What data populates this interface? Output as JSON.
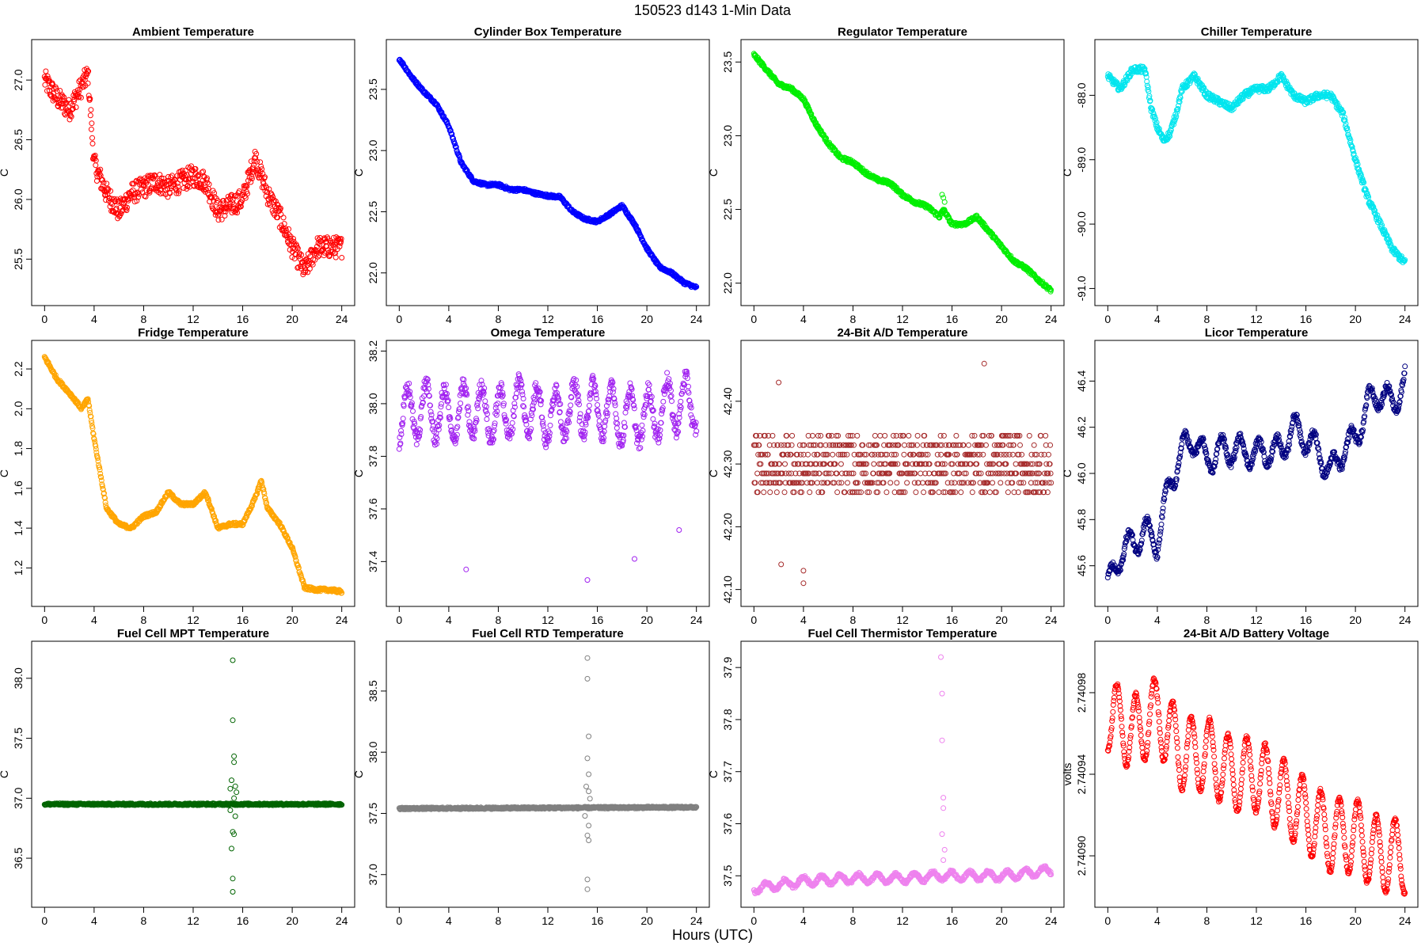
{
  "page_title": "150523    d143    1-Min Data",
  "x_axis_label": "Hours (UTC)",
  "chart_data": [
    {
      "type": "scatter",
      "title": "Ambient Temperature",
      "ylabel": "C",
      "color": "#ff0000",
      "xlim": [
        0,
        24
      ],
      "ylim": [
        25.2,
        27.25
      ],
      "xticks": [
        0,
        4,
        8,
        12,
        16,
        20,
        24
      ],
      "yticks": [
        25.5,
        26.0,
        26.5,
        27.0
      ],
      "ytick_labels": [
        "25.5",
        "26.0",
        "26.5",
        "27.0"
      ],
      "spread": 0.09,
      "series": [
        [
          0,
          27.0
        ],
        [
          1,
          26.85
        ],
        [
          2,
          26.75
        ],
        [
          3,
          26.95
        ],
        [
          3.5,
          27.05
        ],
        [
          4,
          26.3
        ],
        [
          5,
          26.05
        ],
        [
          6,
          25.9
        ],
        [
          7,
          26.05
        ],
        [
          8,
          26.1
        ],
        [
          9,
          26.15
        ],
        [
          10,
          26.1
        ],
        [
          11,
          26.15
        ],
        [
          12,
          26.2
        ],
        [
          13,
          26.15
        ],
        [
          14,
          25.9
        ],
        [
          15,
          25.95
        ],
        [
          16,
          26.0
        ],
        [
          17,
          26.35
        ],
        [
          18,
          26.05
        ],
        [
          19,
          25.85
        ],
        [
          20,
          25.6
        ],
        [
          21,
          25.4
        ],
        [
          22,
          25.6
        ],
        [
          23,
          25.6
        ],
        [
          24,
          25.6
        ]
      ],
      "outliers": []
    },
    {
      "type": "scatter",
      "title": "Cylinder Box Temperature",
      "ylabel": "C",
      "color": "#0000ff",
      "xlim": [
        0,
        24
      ],
      "ylim": [
        21.82,
        23.82
      ],
      "xticks": [
        0,
        4,
        8,
        12,
        16,
        20,
        24
      ],
      "yticks": [
        22.0,
        22.5,
        23.0,
        23.5
      ],
      "ytick_labels": [
        "22.0",
        "22.5",
        "23.0",
        "23.5"
      ],
      "spread": 0.012,
      "series": [
        [
          0,
          23.75
        ],
        [
          1,
          23.6
        ],
        [
          2,
          23.48
        ],
        [
          3,
          23.38
        ],
        [
          4,
          23.2
        ],
        [
          5,
          22.9
        ],
        [
          6,
          22.75
        ],
        [
          7,
          22.72
        ],
        [
          8,
          22.72
        ],
        [
          9,
          22.68
        ],
        [
          10,
          22.68
        ],
        [
          11,
          22.65
        ],
        [
          12,
          22.63
        ],
        [
          13,
          22.62
        ],
        [
          14,
          22.5
        ],
        [
          15,
          22.44
        ],
        [
          16,
          22.42
        ],
        [
          17,
          22.48
        ],
        [
          18,
          22.55
        ],
        [
          19,
          22.4
        ],
        [
          20,
          22.2
        ],
        [
          21,
          22.05
        ],
        [
          22,
          22.0
        ],
        [
          23,
          21.92
        ],
        [
          24,
          21.88
        ]
      ],
      "outliers": []
    },
    {
      "type": "scatter",
      "title": "Regulator Temperature",
      "ylabel": "C",
      "color": "#00ee00",
      "xlim": [
        0,
        24
      ],
      "ylim": [
        21.92,
        23.58
      ],
      "xticks": [
        0,
        4,
        8,
        12,
        16,
        20,
        24
      ],
      "yticks": [
        22.0,
        22.5,
        23.0,
        23.5
      ],
      "ytick_labels": [
        "22.0",
        "22.5",
        "23.0",
        "23.5"
      ],
      "spread": 0.012,
      "series": [
        [
          0,
          23.55
        ],
        [
          1,
          23.45
        ],
        [
          2,
          23.35
        ],
        [
          3,
          23.32
        ],
        [
          4,
          23.25
        ],
        [
          5,
          23.08
        ],
        [
          6,
          22.95
        ],
        [
          7,
          22.85
        ],
        [
          8,
          22.82
        ],
        [
          9,
          22.75
        ],
        [
          10,
          22.7
        ],
        [
          11,
          22.68
        ],
        [
          12,
          22.6
        ],
        [
          13,
          22.55
        ],
        [
          14,
          22.52
        ],
        [
          15,
          22.45
        ],
        [
          15.3,
          22.5
        ],
        [
          16,
          22.4
        ],
        [
          17,
          22.4
        ],
        [
          18,
          22.45
        ],
        [
          19,
          22.35
        ],
        [
          20,
          22.25
        ],
        [
          21,
          22.15
        ],
        [
          22,
          22.1
        ],
        [
          23,
          22.02
        ],
        [
          24,
          21.95
        ]
      ],
      "outliers": [
        [
          15.2,
          22.6
        ],
        [
          15.3,
          22.58
        ],
        [
          15.4,
          22.55
        ]
      ]
    },
    {
      "type": "scatter",
      "title": "Chiller Temperature",
      "ylabel": "C",
      "color": "#00e5ee",
      "xlim": [
        0,
        24
      ],
      "ylim": [
        -91.1,
        -87.3
      ],
      "xticks": [
        0,
        4,
        8,
        12,
        16,
        20,
        24
      ],
      "yticks": [
        -91.0,
        -90.0,
        -89.0,
        -88.0
      ],
      "ytick_labels": [
        "-91.0",
        "-90.0",
        "-89.0",
        "-88.0"
      ],
      "spread": 0.05,
      "series": [
        [
          0,
          -87.7
        ],
        [
          1,
          -87.9
        ],
        [
          2,
          -87.6
        ],
        [
          3,
          -87.6
        ],
        [
          3.5,
          -88.2
        ],
        [
          4,
          -88.5
        ],
        [
          4.5,
          -88.7
        ],
        [
          5,
          -88.6
        ],
        [
          5.5,
          -88.3
        ],
        [
          6,
          -87.9
        ],
        [
          7,
          -87.7
        ],
        [
          8,
          -88.0
        ],
        [
          9,
          -88.1
        ],
        [
          10,
          -88.2
        ],
        [
          11,
          -88.0
        ],
        [
          12,
          -87.9
        ],
        [
          13,
          -87.9
        ],
        [
          14,
          -87.7
        ],
        [
          15,
          -88.0
        ],
        [
          16,
          -88.1
        ],
        [
          17,
          -88.0
        ],
        [
          18,
          -88.0
        ],
        [
          19,
          -88.3
        ],
        [
          20,
          -89.0
        ],
        [
          21,
          -89.6
        ],
        [
          22,
          -90.0
        ],
        [
          23,
          -90.4
        ],
        [
          24,
          -90.6
        ]
      ],
      "outliers": []
    },
    {
      "type": "scatter",
      "title": "Fridge Temperature",
      "ylabel": "C",
      "color": "#ffa500",
      "xlim": [
        0,
        24
      ],
      "ylim": [
        1.06,
        2.29
      ],
      "xticks": [
        0,
        4,
        8,
        12,
        16,
        20,
        24
      ],
      "yticks": [
        1.2,
        1.4,
        1.6,
        1.8,
        2.0,
        2.2
      ],
      "ytick_labels": [
        "1.2",
        "1.4",
        "1.6",
        "1.8",
        "2.0",
        "2.2"
      ],
      "spread": 0.008,
      "series": [
        [
          0,
          2.26
        ],
        [
          1,
          2.15
        ],
        [
          2,
          2.08
        ],
        [
          3,
          2.0
        ],
        [
          3.5,
          2.05
        ],
        [
          4,
          1.85
        ],
        [
          5,
          1.5
        ],
        [
          6,
          1.42
        ],
        [
          7,
          1.4
        ],
        [
          8,
          1.46
        ],
        [
          9,
          1.48
        ],
        [
          10,
          1.58
        ],
        [
          11,
          1.52
        ],
        [
          12,
          1.52
        ],
        [
          13,
          1.58
        ],
        [
          14,
          1.4
        ],
        [
          15,
          1.42
        ],
        [
          16,
          1.42
        ],
        [
          17,
          1.55
        ],
        [
          17.5,
          1.64
        ],
        [
          18,
          1.5
        ],
        [
          19,
          1.42
        ],
        [
          20,
          1.3
        ],
        [
          21,
          1.1
        ],
        [
          22,
          1.09
        ],
        [
          23,
          1.09
        ],
        [
          24,
          1.08
        ]
      ],
      "outliers": []
    },
    {
      "type": "scatter",
      "title": "Omega Temperature",
      "ylabel": "C",
      "color": "#a020f0",
      "xlim": [
        0,
        24
      ],
      "ylim": [
        37.27,
        38.2
      ],
      "xticks": [
        0,
        4,
        8,
        12,
        16,
        20,
        24
      ],
      "yticks": [
        37.4,
        37.6,
        37.8,
        38.0,
        38.2
      ],
      "ytick_labels": [
        "37.4",
        "37.6",
        "37.8",
        "38.0",
        "38.2"
      ],
      "spread": 0.03,
      "series": [
        [
          0,
          37.95
        ],
        [
          2,
          37.98
        ],
        [
          4,
          37.95
        ],
        [
          6,
          37.98
        ],
        [
          8,
          37.95
        ],
        [
          10,
          38.0
        ],
        [
          12,
          37.95
        ],
        [
          14,
          37.98
        ],
        [
          16,
          37.98
        ],
        [
          18,
          37.95
        ],
        [
          20,
          37.95
        ],
        [
          22,
          38.0
        ],
        [
          24,
          38.0
        ]
      ],
      "osc": 0.1,
      "outliers": [
        [
          5.4,
          37.37
        ],
        [
          15.2,
          37.33
        ],
        [
          19,
          37.41
        ],
        [
          22.6,
          37.52
        ]
      ]
    },
    {
      "type": "scatter",
      "title": "24-Bit A/D Temperature",
      "ylabel": "C",
      "color": "#a52a2a",
      "xlim": [
        0,
        24
      ],
      "ylim": [
        42.09,
        42.48
      ],
      "xticks": [
        0,
        4,
        8,
        12,
        16,
        20,
        24
      ],
      "yticks": [
        42.1,
        42.2,
        42.3,
        42.4
      ],
      "ytick_labels": [
        "42.10",
        "42.20",
        "42.30",
        "42.40"
      ],
      "spread": 0.0,
      "series": [
        [
          0,
          42.3
        ],
        [
          24,
          42.3
        ]
      ],
      "quantize": 0.015,
      "noise": 0.045,
      "outliers": [
        [
          2.2,
          42.14
        ],
        [
          4,
          42.11
        ],
        [
          18.6,
          42.46
        ],
        [
          4,
          42.13
        ],
        [
          2,
          42.43
        ]
      ]
    },
    {
      "type": "scatter",
      "title": "Licor Temperature",
      "ylabel": "C",
      "color": "#000080",
      "xlim": [
        0,
        24
      ],
      "ylim": [
        45.47,
        46.53
      ],
      "xticks": [
        0,
        4,
        8,
        12,
        16,
        20,
        24
      ],
      "yticks": [
        45.6,
        45.8,
        46.0,
        46.2,
        46.4
      ],
      "ytick_labels": [
        "45.6",
        "45.8",
        "46.0",
        "46.2",
        "46.4"
      ],
      "spread": 0.015,
      "series": [
        [
          0,
          45.5
        ],
        [
          1,
          45.65
        ],
        [
          2,
          45.7
        ],
        [
          3,
          45.75
        ],
        [
          4,
          45.7
        ],
        [
          5,
          45.95
        ],
        [
          6,
          46.1
        ],
        [
          7,
          46.15
        ],
        [
          8,
          46.05
        ],
        [
          9,
          46.1
        ],
        [
          10,
          46.1
        ],
        [
          11,
          46.1
        ],
        [
          12,
          46.08
        ],
        [
          13,
          46.1
        ],
        [
          14,
          46.1
        ],
        [
          15,
          46.2
        ],
        [
          16,
          46.15
        ],
        [
          17,
          46.1
        ],
        [
          18,
          46.0
        ],
        [
          19,
          46.1
        ],
        [
          20,
          46.15
        ],
        [
          21,
          46.3
        ],
        [
          22,
          46.35
        ],
        [
          23,
          46.3
        ],
        [
          24,
          46.4
        ]
      ],
      "osc": 0.06,
      "outliers": []
    },
    {
      "type": "scatter",
      "title": "Fuel Cell MPT Temperature",
      "ylabel": "C",
      "color": "#006400",
      "xlim": [
        0,
        24
      ],
      "ylim": [
        36.18,
        38.22
      ],
      "xticks": [
        0,
        4,
        8,
        12,
        16,
        20,
        24
      ],
      "yticks": [
        36.5,
        37.0,
        37.5,
        38.0
      ],
      "ytick_labels": [
        "36.5",
        "37.0",
        "37.5",
        "38.0"
      ],
      "spread": 0.008,
      "series": [
        [
          0,
          36.95
        ],
        [
          24,
          36.95
        ]
      ],
      "outliers": [
        [
          15.2,
          38.15
        ],
        [
          15.2,
          37.65
        ],
        [
          15.3,
          37.35
        ],
        [
          15.3,
          37.3
        ],
        [
          15.1,
          37.15
        ],
        [
          15.4,
          37.1
        ],
        [
          15.2,
          36.72
        ],
        [
          15.3,
          36.7
        ],
        [
          15.1,
          36.58
        ],
        [
          15.2,
          36.33
        ],
        [
          15.2,
          36.22
        ],
        [
          15.5,
          37.05
        ],
        [
          15.0,
          36.9
        ],
        [
          15.4,
          36.85
        ],
        [
          15.3,
          37.0
        ],
        [
          15.0,
          37.08
        ]
      ]
    },
    {
      "type": "scatter",
      "title": "Fuel Cell RTD Temperature",
      "ylabel": "C",
      "color": "#808080",
      "xlim": [
        0,
        24
      ],
      "ylim": [
        36.82,
        38.82
      ],
      "xticks": [
        0,
        4,
        8,
        12,
        16,
        20,
        24
      ],
      "yticks": [
        37.0,
        37.5,
        38.0,
        38.5
      ],
      "ytick_labels": [
        "37.0",
        "37.5",
        "38.0",
        "38.5"
      ],
      "spread": 0.008,
      "series": [
        [
          0,
          37.54
        ],
        [
          24,
          37.55
        ]
      ],
      "outliers": [
        [
          15.2,
          38.77
        ],
        [
          15.2,
          38.6
        ],
        [
          15.3,
          38.13
        ],
        [
          15.2,
          37.95
        ],
        [
          15.3,
          37.82
        ],
        [
          15.1,
          37.72
        ],
        [
          15.3,
          37.4
        ],
        [
          15.2,
          37.32
        ],
        [
          15.3,
          37.28
        ],
        [
          15.2,
          36.96
        ],
        [
          15.2,
          36.88
        ],
        [
          15.4,
          37.62
        ],
        [
          15.0,
          37.48
        ],
        [
          15.3,
          37.68
        ]
      ]
    },
    {
      "type": "scatter",
      "title": "Fuel Cell Thermistor Temperature",
      "ylabel": "C",
      "color": "#ee82ee",
      "xlim": [
        0,
        24
      ],
      "ylim": [
        37.46,
        37.93
      ],
      "xticks": [
        0,
        4,
        8,
        12,
        16,
        20,
        24
      ],
      "yticks": [
        37.5,
        37.6,
        37.7,
        37.8,
        37.9
      ],
      "ytick_labels": [
        "37.5",
        "37.6",
        "37.7",
        "37.8",
        "37.9"
      ],
      "spread": 0.003,
      "series": [
        [
          0,
          37.475
        ],
        [
          4,
          37.49
        ],
        [
          8,
          37.495
        ],
        [
          12,
          37.495
        ],
        [
          15,
          37.5
        ],
        [
          16,
          37.5
        ],
        [
          20,
          37.5
        ],
        [
          24,
          37.51
        ]
      ],
      "osc": 0.008,
      "outliers": [
        [
          15.1,
          37.92
        ],
        [
          15.2,
          37.85
        ],
        [
          15.2,
          37.76
        ],
        [
          15.3,
          37.65
        ],
        [
          15.3,
          37.63
        ],
        [
          15.2,
          37.58
        ],
        [
          15.4,
          37.55
        ],
        [
          15.3,
          37.53
        ]
      ]
    },
    {
      "type": "scatter",
      "title": "24-Bit A/D Battery Voltage",
      "ylabel": "volts",
      "color": "#ff0000",
      "xlim": [
        0,
        24
      ],
      "ylim": [
        2.74088,
        2.741
      ],
      "xticks": [
        0,
        4,
        8,
        12,
        16,
        20,
        24
      ],
      "yticks": [
        2.7409,
        2.74094,
        2.74098
      ],
      "ytick_labels": [
        "2.74090",
        "2.74094",
        "2.74098"
      ],
      "spread": 1e-06,
      "series": [
        [
          0,
          2.74097
        ],
        [
          2,
          2.74096
        ],
        [
          4,
          2.74097
        ],
        [
          6,
          2.74095
        ],
        [
          8,
          2.74095
        ],
        [
          10,
          2.74094
        ],
        [
          12,
          2.74094
        ],
        [
          14,
          2.74093
        ],
        [
          16,
          2.74092
        ],
        [
          18,
          2.74091
        ],
        [
          20,
          2.74091
        ],
        [
          22,
          2.7409
        ],
        [
          24,
          2.7409
        ]
      ],
      "osc": 1.8e-05,
      "outliers": []
    }
  ]
}
